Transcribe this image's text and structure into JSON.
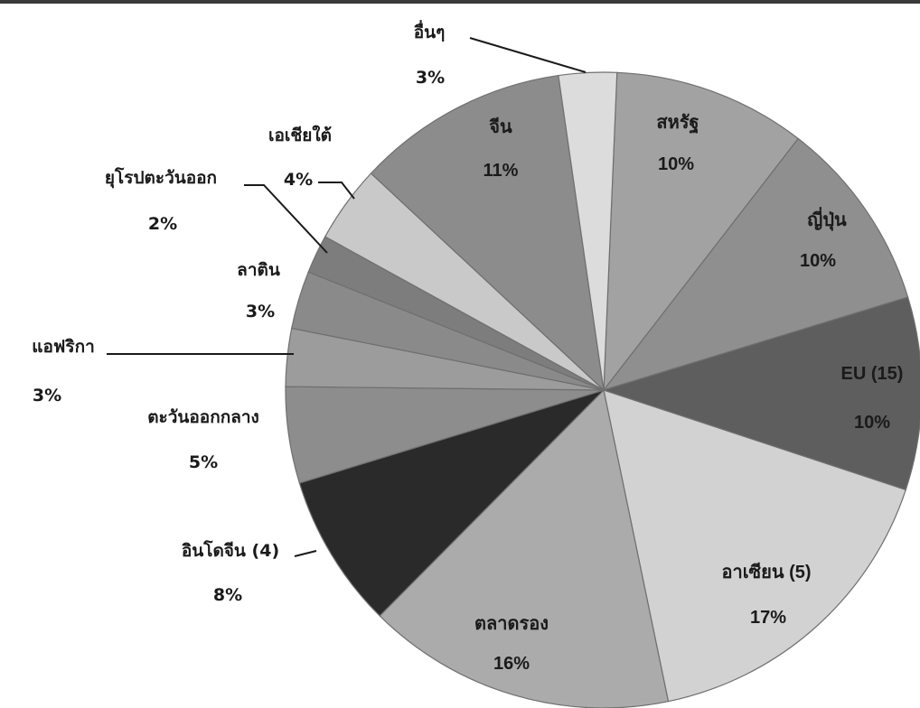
{
  "chart_data": {
    "type": "pie",
    "title": "",
    "start_angle_deg": -87.6,
    "slices": [
      {
        "name": "สหรัฐ",
        "pct_label": "10%",
        "value": 10,
        "color": "#a2a2a2",
        "text_color": "#1a1a1a"
      },
      {
        "name": "ญี่ปุ่น",
        "pct_label": "10%",
        "value": 10,
        "color": "#8f8f8f",
        "text_color": "#1a1a1a"
      },
      {
        "name": "EU (15)",
        "pct_label": "10%",
        "value": 10,
        "color": "#5e5e5e",
        "text_color": "#ffffff"
      },
      {
        "name": "อาเซียน (5)",
        "pct_label": "17%",
        "value": 17,
        "color": "#d2d2d2",
        "text_color": "#1a1a1a"
      },
      {
        "name": "ตลาดรอง",
        "pct_label": "16%",
        "value": 16,
        "color": "#ababab",
        "text_color": "#1a1a1a"
      },
      {
        "name": "อินโดจีน (4)",
        "pct_label": "8%",
        "value": 8,
        "color": "#2a2a2a",
        "text_color": "#1a1a1a"
      },
      {
        "name": "ตะวันออกกลาง",
        "pct_label": "5%",
        "value": 5,
        "color": "#8d8d8d",
        "text_color": "#1a1a1a"
      },
      {
        "name": "แอฟริกา",
        "pct_label": "3%",
        "value": 3,
        "color": "#9c9c9c",
        "text_color": "#1a1a1a"
      },
      {
        "name": "ลาติน",
        "pct_label": "3%",
        "value": 3,
        "color": "#8a8a8a",
        "text_color": "#1a1a1a"
      },
      {
        "name": "ยุโรปตะวันออก",
        "pct_label": "2%",
        "value": 2,
        "color": "#7d7d7d",
        "text_color": "#1a1a1a"
      },
      {
        "name": "เอเชียใต้",
        "pct_label": "4%",
        "value": 4,
        "color": "#c9c9c9",
        "text_color": "#1a1a1a"
      },
      {
        "name": "จีน",
        "pct_label": "11%",
        "value": 11,
        "color": "#8c8c8c",
        "text_color": "#1a1a1a"
      },
      {
        "name": "อื่นๆ",
        "pct_label": "3%",
        "value": 3,
        "color": "#dcdcdc",
        "text_color": "#1a1a1a"
      }
    ]
  }
}
